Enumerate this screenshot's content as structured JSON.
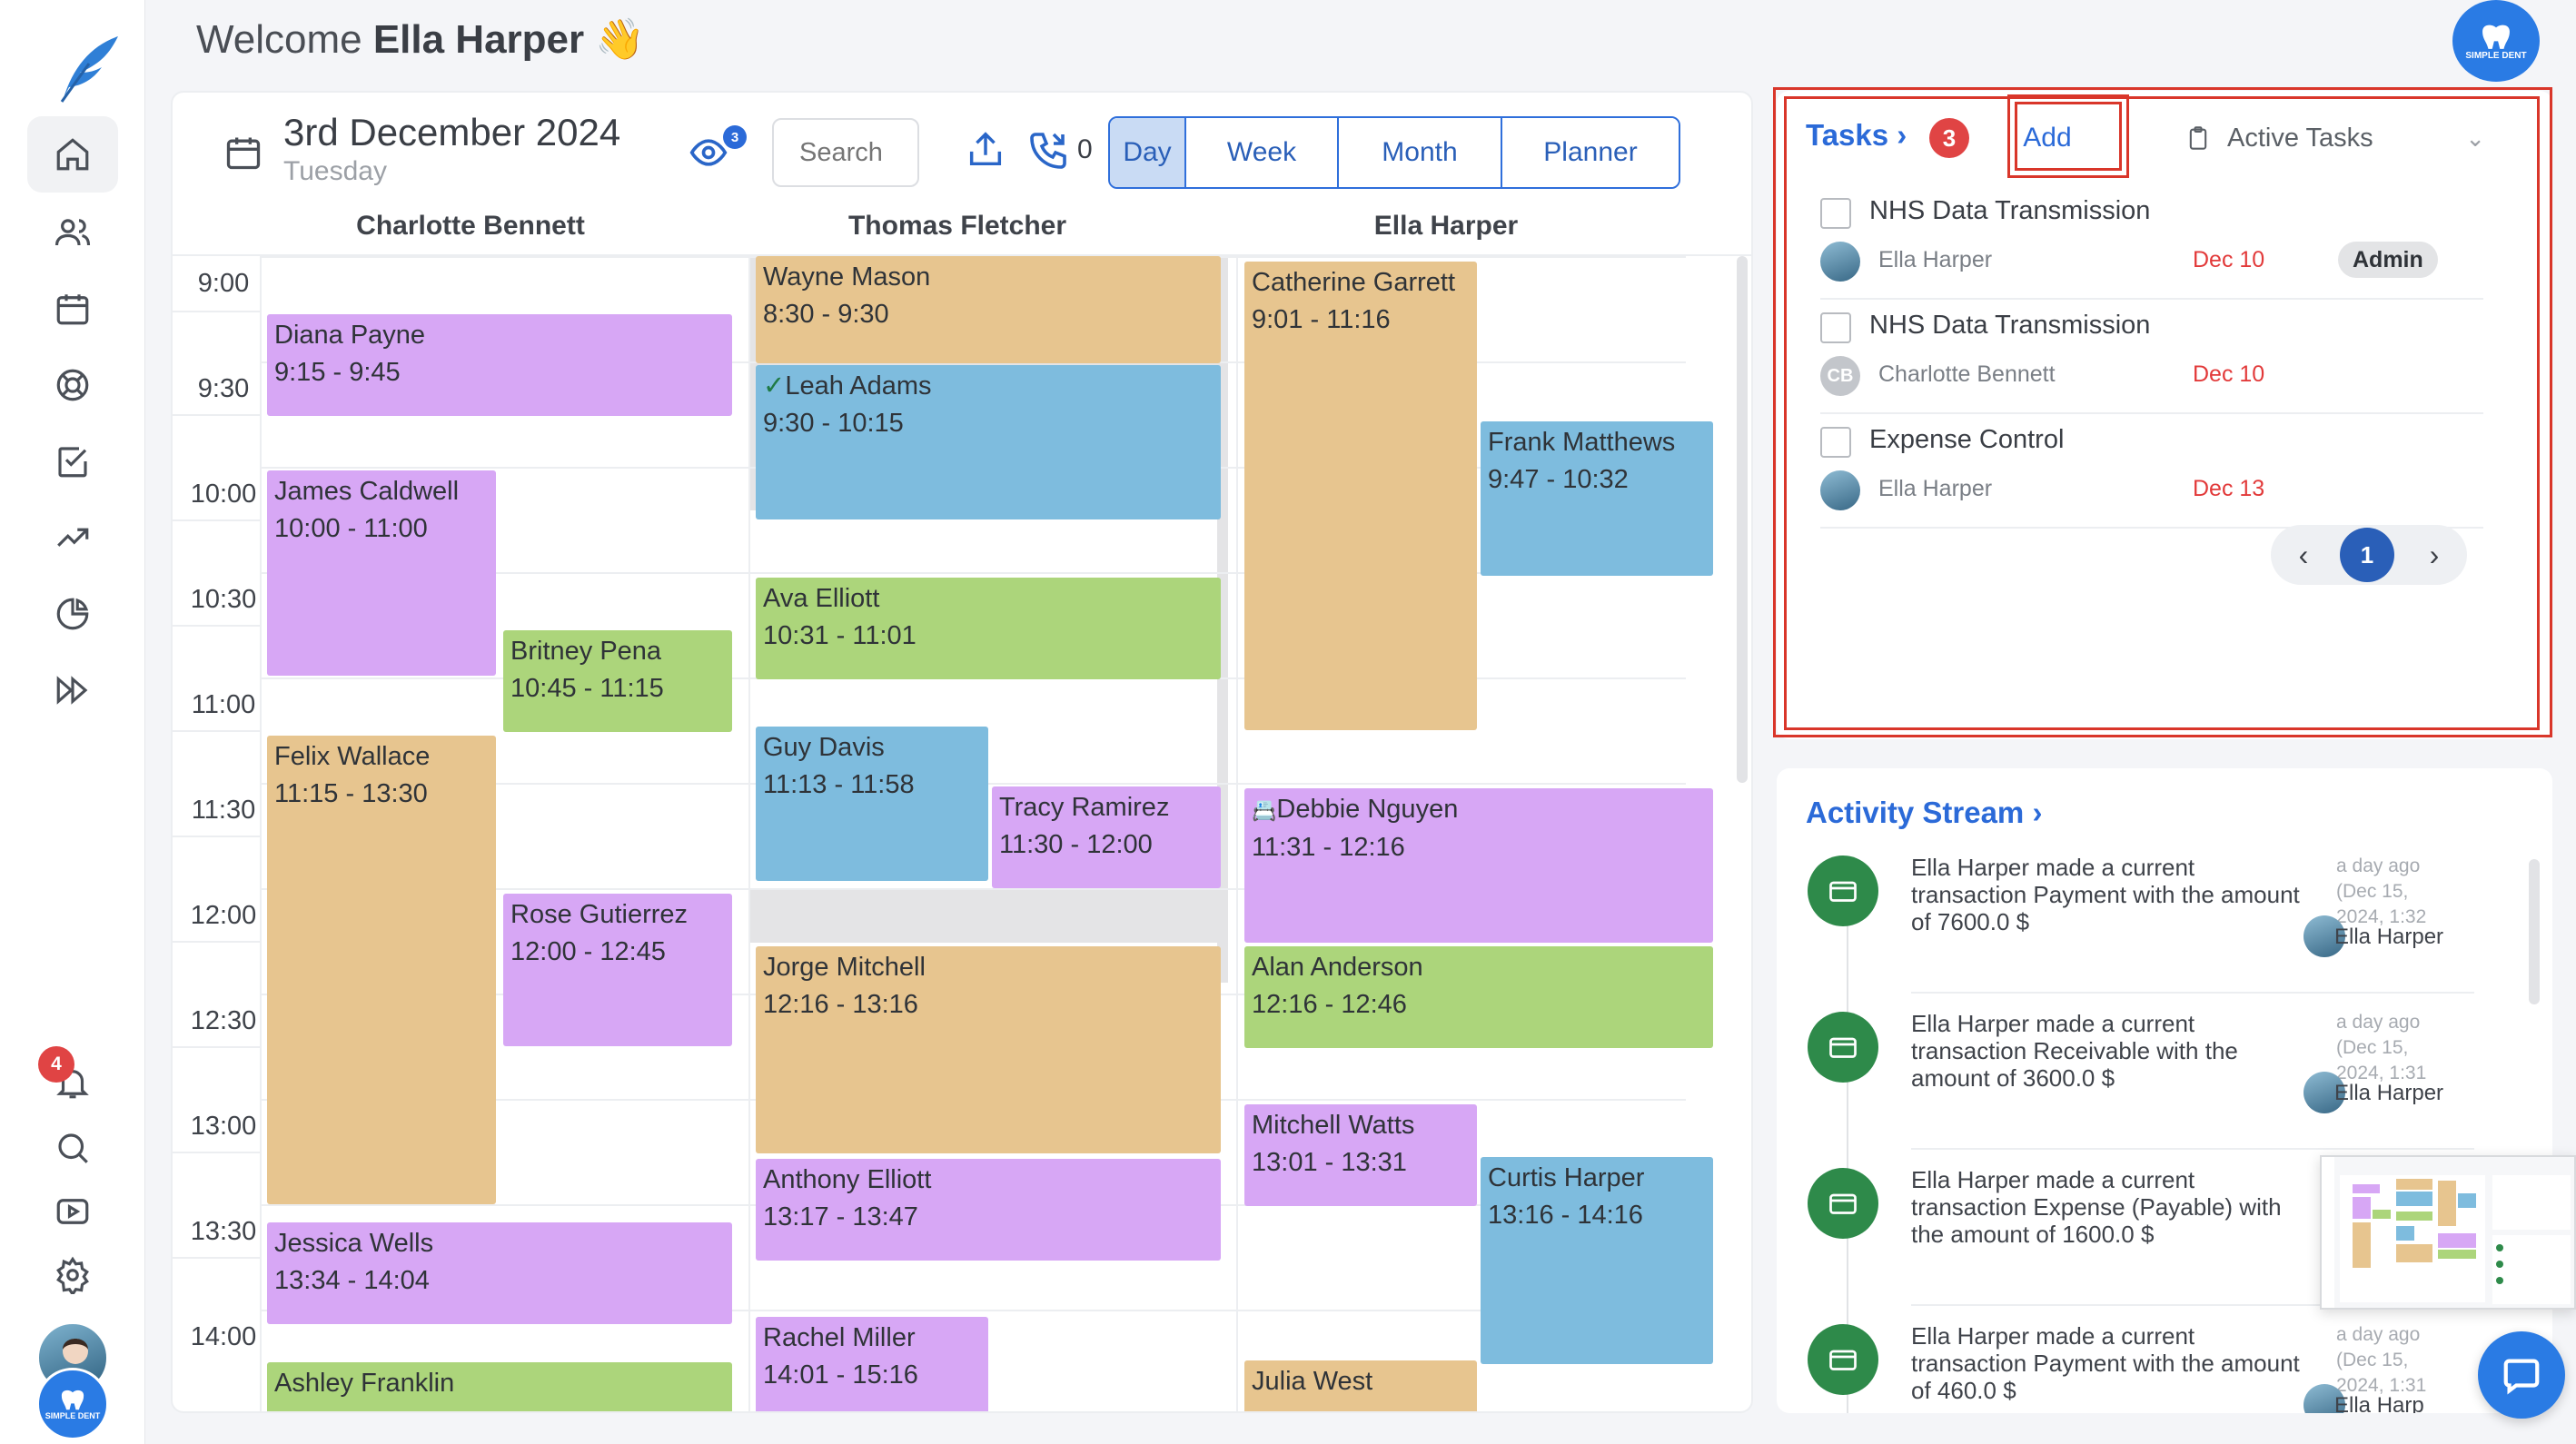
{
  "welcome": {
    "prefix": "Welcome",
    "name": "Ella Harper",
    "emoji": "👋"
  },
  "brand": {
    "label": "SIMPLE DENT"
  },
  "notifications": {
    "count": "4"
  },
  "calendar": {
    "date": "3rd December 2024",
    "weekday": "Tuesday",
    "eye_count": "3",
    "search_placeholder": "Search",
    "call_count": "0",
    "views": [
      "Day",
      "Week",
      "Month",
      "Planner"
    ],
    "active_view": "Day",
    "columns": [
      "Charlotte Bennett",
      "Thomas Fletcher",
      "Ella Harper"
    ],
    "times": [
      "9:00",
      "9:30",
      "10:00",
      "10:30",
      "11:00",
      "11:30",
      "12:00",
      "12:30",
      "13:00",
      "13:30",
      "14:00"
    ],
    "events": [
      {
        "name": "Diana Payne",
        "time": "9:15 - 9:45",
        "color": "purple"
      },
      {
        "name": "James Caldwell",
        "time": "10:00 - 11:00",
        "color": "purple"
      },
      {
        "name": "Britney Pena",
        "time": "10:45 - 11:15",
        "color": "green"
      },
      {
        "name": "Felix Wallace",
        "time": "11:15 - 13:30",
        "color": "orange"
      },
      {
        "name": "Rose Gutierrez",
        "time": "12:00 - 12:45",
        "color": "purple"
      },
      {
        "name": "Jessica Wells",
        "time": "13:34 - 14:04",
        "color": "purple"
      },
      {
        "name": "Ashley Franklin",
        "time": "",
        "color": "green"
      },
      {
        "name": "Wayne Mason",
        "time": "8:30 - 9:30",
        "color": "orange"
      },
      {
        "name": "Leah Adams",
        "time": "9:30 - 10:15",
        "color": "blue"
      },
      {
        "name": "Ava Elliott",
        "time": "10:31 - 11:01",
        "color": "green"
      },
      {
        "name": "Guy Davis",
        "time": "11:13 - 11:58",
        "color": "blue"
      },
      {
        "name": "Tracy Ramirez",
        "time": "11:30 - 12:00",
        "color": "purple"
      },
      {
        "name": "Jorge Mitchell",
        "time": "12:16 - 13:16",
        "color": "orange"
      },
      {
        "name": "Anthony Elliott",
        "time": "13:17 - 13:47",
        "color": "purple"
      },
      {
        "name": "Rachel Miller",
        "time": "14:01 - 15:16",
        "color": "purple"
      },
      {
        "name": "Catherine Garrett",
        "time": "9:01 - 11:16",
        "color": "orange"
      },
      {
        "name": "Frank Matthews",
        "time": "9:47 - 10:32",
        "color": "blue"
      },
      {
        "name": "Debbie Nguyen",
        "time": "11:31 - 12:16",
        "color": "purple"
      },
      {
        "name": "Alan Anderson",
        "time": "12:16 - 12:46",
        "color": "green"
      },
      {
        "name": "Mitchell Watts",
        "time": "13:01 - 13:31",
        "color": "purple"
      },
      {
        "name": "Curtis Harper",
        "time": "13:16 - 14:16",
        "color": "blue"
      },
      {
        "name": "Julia West",
        "time": "",
        "color": "orange"
      }
    ],
    "colors": {
      "purple": "#d7a7f5",
      "orange": "#e7c58f",
      "blue": "#7ebcde",
      "green": "#acd57b"
    }
  },
  "tasks": {
    "title": "Tasks",
    "count": "3",
    "add_label": "Add",
    "filter": "Active Tasks",
    "items": [
      {
        "name": "NHS Data Transmission",
        "user": "Ella Harper",
        "date": "Dec 10",
        "badge": "Admin"
      },
      {
        "name": "NHS Data Transmission",
        "user": "Charlotte Bennett",
        "initials": "CB",
        "date": "Dec 10"
      },
      {
        "name": "Expense Control",
        "user": "Ella Harper",
        "date": "Dec 13"
      }
    ],
    "page": "1"
  },
  "activity": {
    "title": "Activity Stream",
    "items": [
      {
        "text": "Ella Harper made a current transaction Payment with the amount of 7600.0 $",
        "time": "a day ago (Dec 15, 2024, 1:32",
        "user": "Ella Harper"
      },
      {
        "text": "Ella Harper made a current transaction Receivable with the amount of 3600.0 $",
        "time": "a day ago (Dec 15, 2024, 1:31",
        "user": "Ella Harper"
      },
      {
        "text": "Ella Harper made a current transaction Expense (Payable) with the amount of 1600.0 $",
        "time": "",
        "user": ""
      },
      {
        "text": "Ella Harper made a current transaction Payment with the amount of 460.0 $",
        "time": "a day ago (Dec 15, 2024, 1:31",
        "user": "Ella Harp"
      }
    ]
  }
}
